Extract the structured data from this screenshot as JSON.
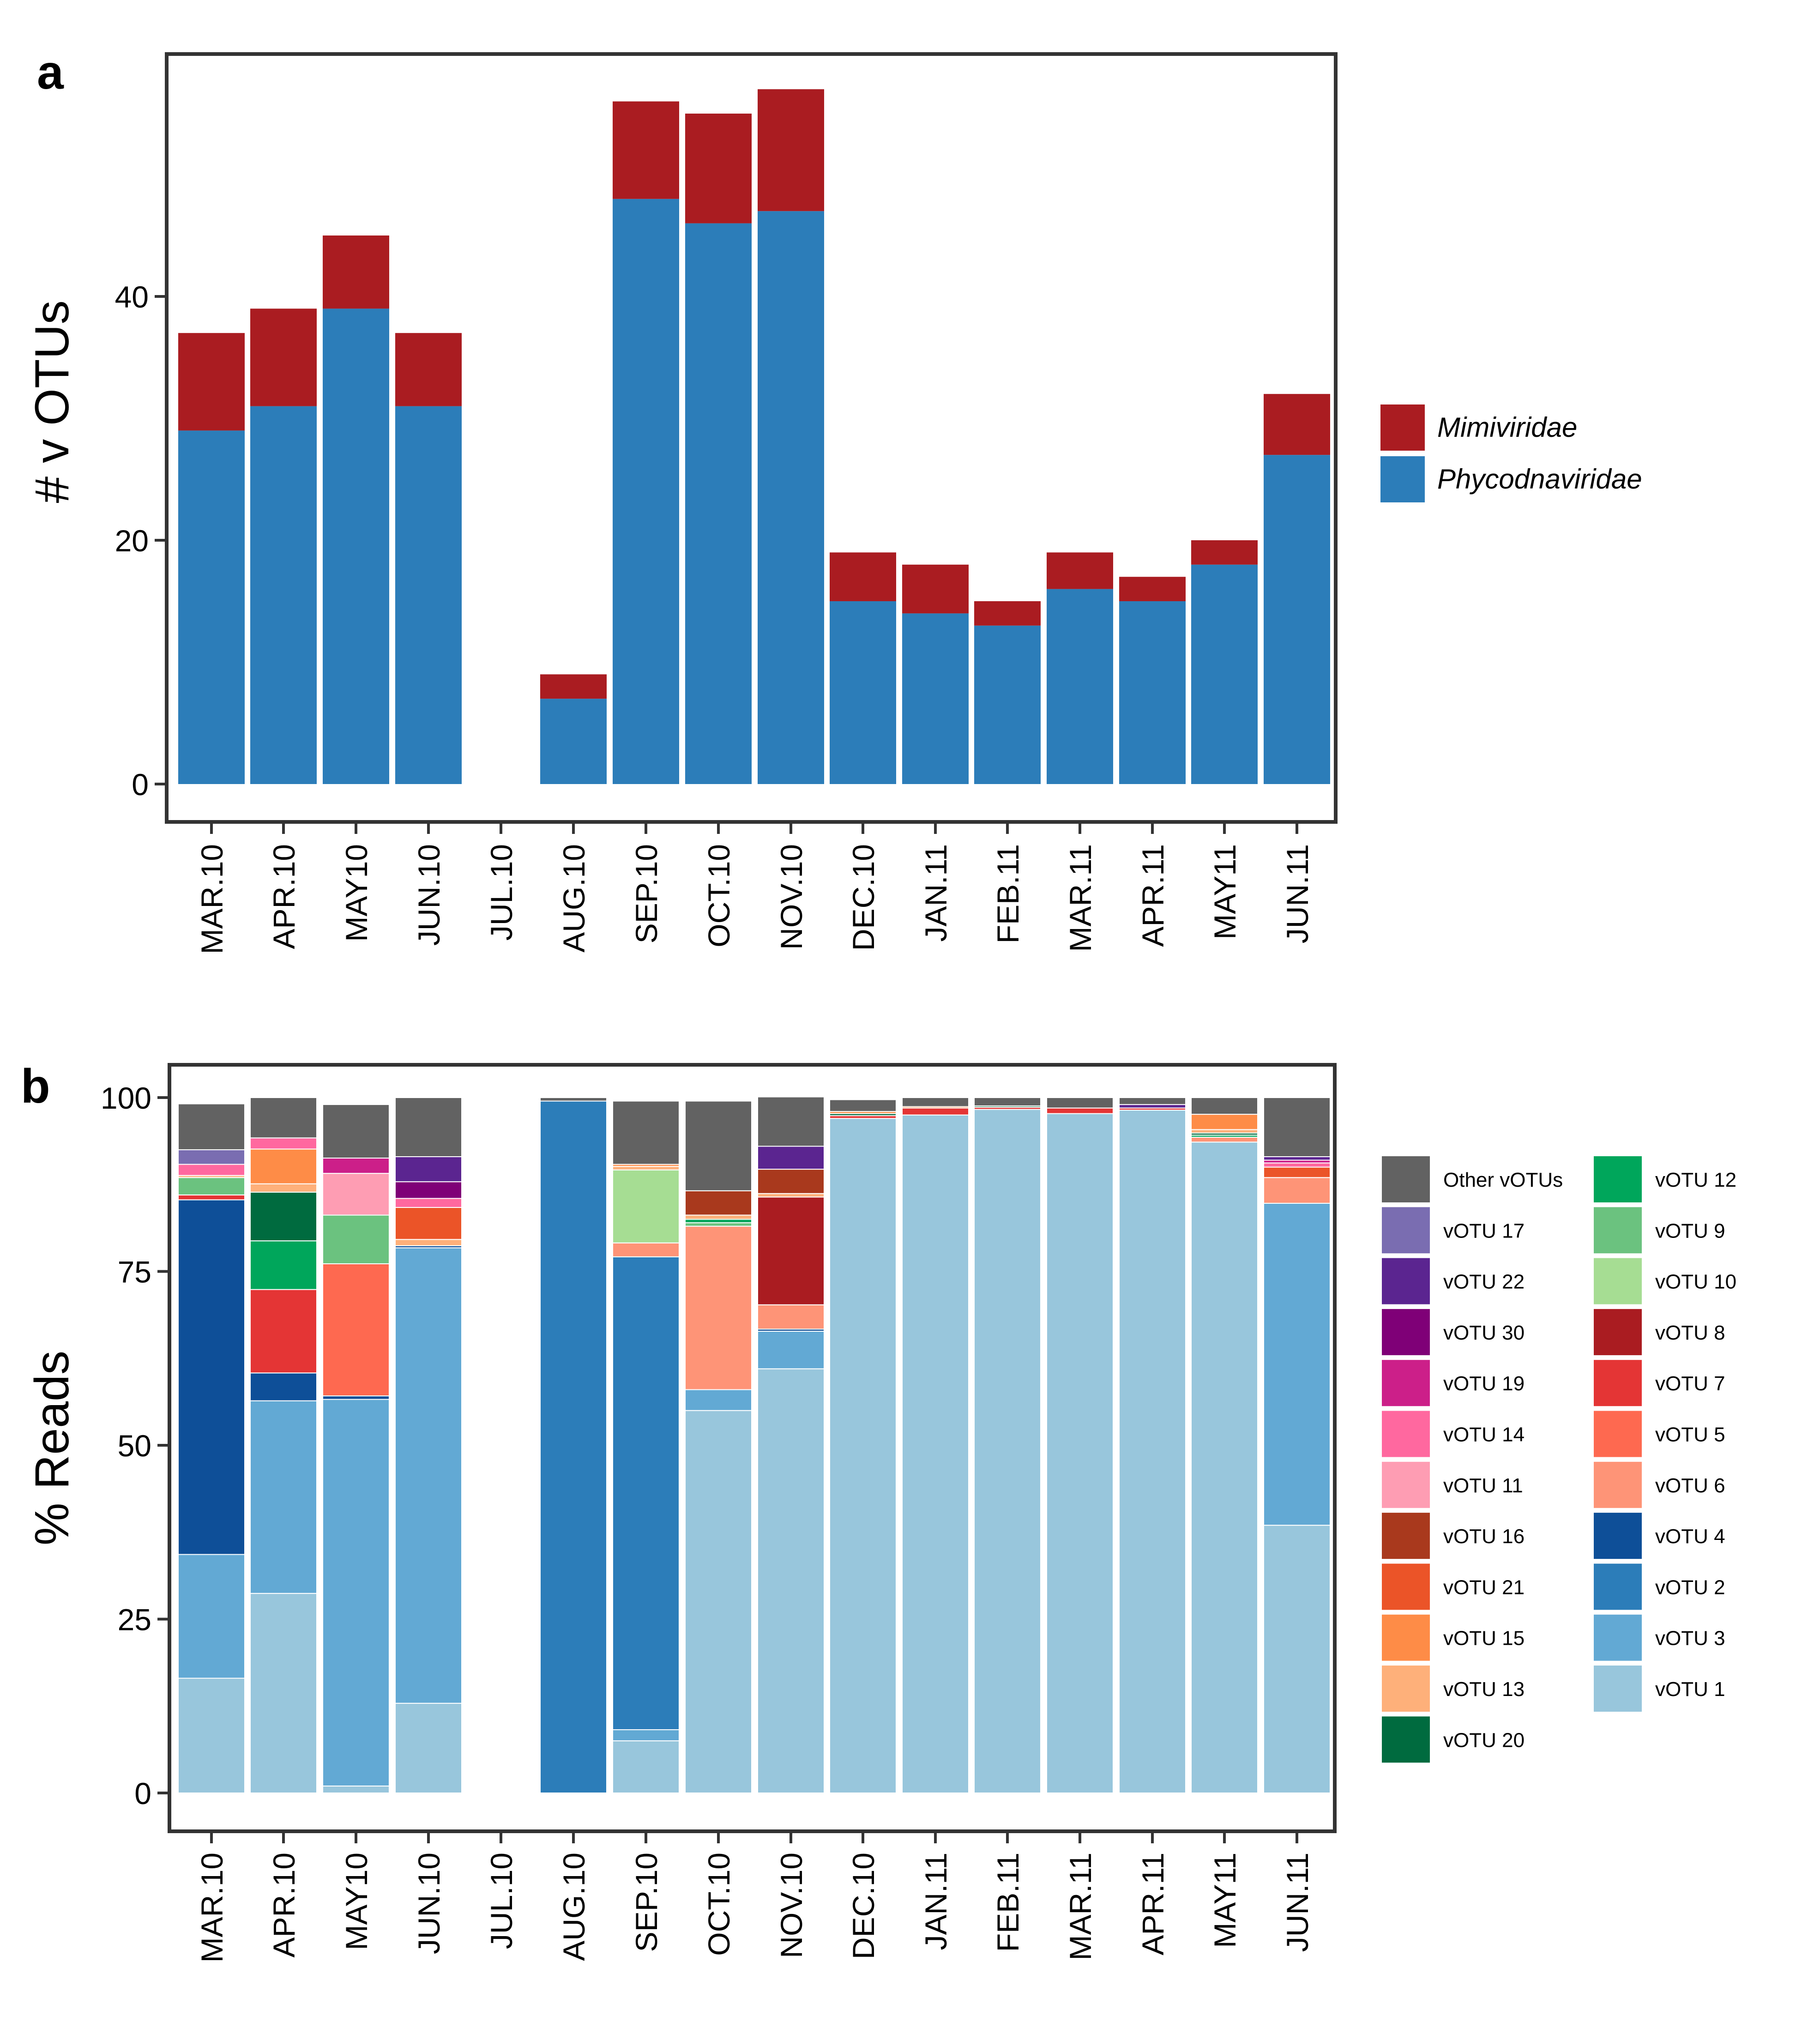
{
  "panel_a_letter": "a",
  "panel_b_letter": "b",
  "colors": {
    "Mimiviridae": "#AA1C21",
    "Phycodnaviridae": "#2C7DB9",
    "Other vOTUs": "#626262",
    "vOTU 17": "#7A6DB1",
    "vOTU 22": "#5B2590",
    "vOTU 30": "#7F0077",
    "vOTU 19": "#CC1F89",
    "vOTU 14": "#FF689F",
    "vOTU 11": "#FE9DB3",
    "vOTU 16": "#A9391D",
    "vOTU 21": "#EB5428",
    "vOTU 15": "#FE8C47",
    "vOTU 13": "#FEB07A",
    "vOTU 20": "#006B3F",
    "vOTU 12": "#00A65B",
    "vOTU 9": "#6BC27F",
    "vOTU 10": "#A6DD93",
    "vOTU 8": "#AA1C21",
    "vOTU 7": "#E43535",
    "vOTU 5": "#FE6950",
    "vOTU 6": "#FE9477",
    "vOTU 4": "#0E4F98",
    "vOTU 2": "#2C7DB9",
    "vOTU 3": "#62A9D4",
    "vOTU 1": "#98C6DC"
  },
  "chart_data": [
    {
      "type": "bar",
      "stacked": true,
      "title": "",
      "xlabel": "",
      "ylabel": "# v OTUs",
      "ylim": [
        0,
        60
      ],
      "yticks": [
        "0",
        "20",
        "40"
      ],
      "categories": [
        "MAR.10",
        "APR.10",
        "MAY10",
        "JUN.10",
        "JUL.10",
        "AUG.10",
        "SEP.10",
        "OCT.10",
        "NOV.10",
        "DEC.10",
        "JAN.11",
        "FEB.11",
        "MAR.11",
        "APR.11",
        "MAY11",
        "JUN.11"
      ],
      "legend": [
        "Mimiviridae",
        "Phycodnaviridae"
      ],
      "legend_position": "right",
      "series": [
        {
          "name": "Phycodnaviridae",
          "values": [
            29,
            31,
            39,
            31,
            0,
            7,
            48,
            46,
            47,
            15,
            14,
            13,
            16,
            15,
            18,
            27
          ]
        },
        {
          "name": "Mimiviridae",
          "values": [
            8,
            8,
            6,
            6,
            0,
            2,
            8,
            9,
            10,
            4,
            4,
            2,
            3,
            2,
            2,
            5
          ]
        }
      ]
    },
    {
      "type": "bar",
      "stacked": true,
      "title": "",
      "xlabel": "",
      "ylabel": "% Reads",
      "ylim": [
        0,
        100
      ],
      "yticks": [
        "0",
        "25",
        "50",
        "75",
        "100"
      ],
      "categories": [
        "MAR.10",
        "APR.10",
        "MAY10",
        "JUN.10",
        "JUL.10",
        "AUG.10",
        "SEP.10",
        "OCT.10",
        "NOV.10",
        "DEC.10",
        "JAN.11",
        "FEB.11",
        "MAR.11",
        "APR.11",
        "MAY11",
        "JUN.11"
      ],
      "legend_col1": [
        "Other vOTUs",
        "vOTU 17",
        "vOTU 22",
        "vOTU 30",
        "vOTU 19",
        "vOTU 14",
        "vOTU 11",
        "vOTU 16",
        "vOTU 21",
        "vOTU 15",
        "vOTU 13",
        "vOTU 20"
      ],
      "legend_col2": [
        "vOTU 12",
        "vOTU 9",
        "vOTU 10",
        "vOTU 8",
        "vOTU 7",
        "vOTU 5",
        "vOTU 6",
        "vOTU 4",
        "vOTU 2",
        "vOTU 3",
        "vOTU 1"
      ],
      "legend_position": "right",
      "stack_order": [
        "vOTU 1",
        "vOTU 3",
        "vOTU 2",
        "vOTU 4",
        "vOTU 6",
        "vOTU 5",
        "vOTU 7",
        "vOTU 8",
        "vOTU 10",
        "vOTU 9",
        "vOTU 12",
        "vOTU 20",
        "vOTU 13",
        "vOTU 15",
        "vOTU 21",
        "vOTU 16",
        "vOTU 11",
        "vOTU 14",
        "vOTU 19",
        "vOTU 30",
        "vOTU 22",
        "vOTU 17",
        "Other vOTUs"
      ],
      "series": [
        {
          "name": "vOTU 1",
          "values": [
            16.5,
            28.7,
            1.0,
            12.9,
            0,
            0,
            7.5,
            55.0,
            61.0,
            97.0,
            97.5,
            98.3,
            97.7,
            98.2,
            93.6,
            38.5
          ]
        },
        {
          "name": "vOTU 3",
          "values": [
            17.8,
            27.7,
            55.6,
            65.5,
            0,
            0,
            1.6,
            3.0,
            5.4,
            0,
            0,
            0,
            0,
            0,
            0,
            46.3
          ]
        },
        {
          "name": "vOTU 2",
          "values": [
            0,
            0,
            0,
            0,
            0,
            99.5,
            68.0,
            0,
            0,
            0,
            0,
            0,
            0,
            0,
            0,
            0
          ]
        },
        {
          "name": "vOTU 4",
          "values": [
            51.0,
            4.0,
            0.5,
            0.3,
            0,
            0,
            0,
            0,
            0.3,
            0,
            0,
            0,
            0,
            0,
            0,
            0
          ]
        },
        {
          "name": "vOTU 6",
          "values": [
            0,
            0,
            0,
            0,
            0,
            0,
            2.0,
            23.5,
            3.5,
            0,
            0,
            0,
            0,
            0,
            0.7,
            3.7
          ]
        },
        {
          "name": "vOTU 5",
          "values": [
            0,
            0,
            19.0,
            0,
            0,
            0,
            0,
            0,
            0,
            0,
            0,
            0,
            0,
            0,
            0,
            0
          ]
        },
        {
          "name": "vOTU 7",
          "values": [
            0.7,
            12.0,
            0,
            0,
            0,
            0,
            0,
            0,
            0,
            0.4,
            1.0,
            0.3,
            0.8,
            0.3,
            0,
            0
          ]
        },
        {
          "name": "vOTU 8",
          "values": [
            0,
            0,
            0,
            0,
            0,
            0,
            0,
            0,
            15.5,
            0,
            0,
            0,
            0,
            0,
            0,
            0
          ]
        },
        {
          "name": "vOTU 10",
          "values": [
            0,
            0,
            0,
            0,
            0,
            0,
            10.5,
            0,
            0,
            0,
            0,
            0,
            0,
            0,
            0,
            0
          ]
        },
        {
          "name": "vOTU 9",
          "values": [
            2.5,
            0,
            7.0,
            0,
            0,
            0,
            0,
            0.5,
            0,
            0,
            0,
            0,
            0,
            0,
            0,
            0
          ]
        },
        {
          "name": "vOTU 12",
          "values": [
            0,
            7.0,
            0,
            0,
            0,
            0,
            0,
            0.5,
            0,
            0,
            0,
            0,
            0,
            0,
            0.3,
            0
          ]
        },
        {
          "name": "vOTU 20",
          "values": [
            0,
            7.0,
            0,
            0,
            0,
            0,
            0,
            0,
            0,
            0.3,
            0,
            0.2,
            0,
            0,
            0.3,
            0
          ]
        },
        {
          "name": "vOTU 13",
          "values": [
            0.3,
            1.2,
            0,
            0.9,
            0,
            0,
            0.5,
            0.6,
            0.5,
            0,
            0,
            0,
            0,
            0,
            0.5,
            0
          ]
        },
        {
          "name": "vOTU 15",
          "values": [
            0,
            5.0,
            0,
            0,
            0,
            0,
            0.3,
            0,
            0,
            0.3,
            0.2,
            0,
            0,
            0,
            2.2,
            0
          ]
        },
        {
          "name": "vOTU 21",
          "values": [
            0,
            0,
            0,
            4.6,
            0,
            0,
            0,
            0,
            0,
            0,
            0,
            0,
            0,
            0,
            0,
            1.5
          ]
        },
        {
          "name": "vOTU 16",
          "values": [
            0,
            0,
            0,
            0,
            0,
            0,
            0,
            3.5,
            3.5,
            0,
            0,
            0,
            0,
            0,
            0,
            0
          ]
        },
        {
          "name": "vOTU 11",
          "values": [
            0,
            0,
            6.0,
            0,
            0,
            0,
            0,
            0,
            0,
            0,
            0,
            0,
            0,
            0,
            0,
            0
          ]
        },
        {
          "name": "vOTU 14",
          "values": [
            1.6,
            1.6,
            0,
            1.3,
            0,
            0,
            0,
            0,
            0,
            0,
            0,
            0,
            0,
            0,
            0,
            0.6
          ]
        },
        {
          "name": "vOTU 19",
          "values": [
            0,
            0,
            2.2,
            0,
            0,
            0,
            0,
            0,
            0,
            0,
            0,
            0,
            0,
            0,
            0,
            0.4
          ]
        },
        {
          "name": "vOTU 30",
          "values": [
            0,
            0,
            0,
            2.4,
            0,
            0,
            0,
            0,
            0,
            0,
            0,
            0,
            0,
            0,
            0,
            0
          ]
        },
        {
          "name": "vOTU 22",
          "values": [
            0,
            0,
            0,
            3.6,
            0,
            0,
            0,
            0,
            3.3,
            0,
            0,
            0,
            0,
            0.5,
            0,
            0.5
          ]
        },
        {
          "name": "vOTU 17",
          "values": [
            2.1,
            0,
            0,
            0,
            0,
            0,
            0,
            0,
            0,
            0,
            0,
            0,
            0,
            0,
            0,
            0
          ]
        },
        {
          "name": "Other vOTUs",
          "values": [
            6.6,
            5.8,
            7.7,
            8.5,
            0,
            0.5,
            9.1,
            12.9,
            7.1,
            1.7,
            1.3,
            1.2,
            1.5,
            1.0,
            2.4,
            8.5
          ]
        }
      ]
    }
  ]
}
